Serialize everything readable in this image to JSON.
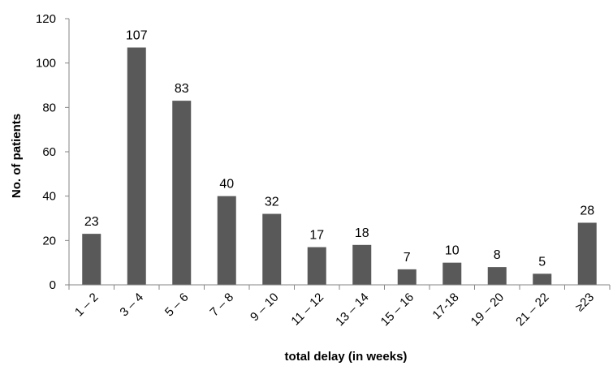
{
  "chart_data": {
    "type": "bar",
    "title": "",
    "xlabel": "total delay (in weeks)",
    "ylabel": "No. of patients",
    "categories": [
      "1 – 2",
      "3 – 4",
      "5 – 6",
      "7 – 8",
      "9 – 10",
      "11 – 12",
      "13 – 14",
      "15 – 16",
      "17-18",
      "19 – 20",
      "21 – 22",
      "≥23"
    ],
    "values": [
      23,
      107,
      83,
      40,
      32,
      17,
      18,
      7,
      10,
      8,
      5,
      28
    ],
    "ylim": [
      0,
      120
    ],
    "yticks": [
      0,
      20,
      40,
      60,
      80,
      100,
      120
    ],
    "grid": false,
    "legend": "none",
    "colors": {
      "bar": "#595959",
      "axis": "#868686"
    }
  }
}
